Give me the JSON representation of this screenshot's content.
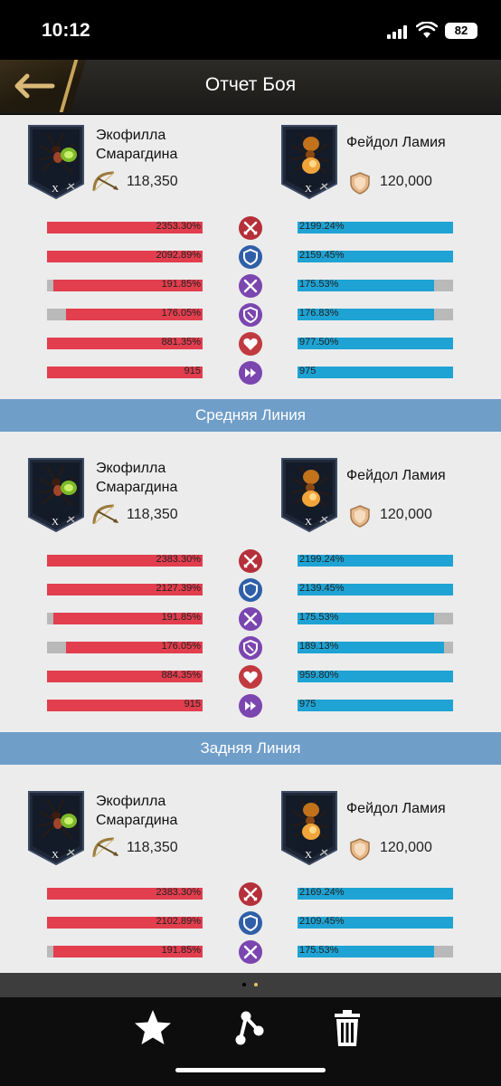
{
  "status_bar": {
    "time": "10:12",
    "battery": "82"
  },
  "header": {
    "title": "Отчет Боя"
  },
  "colors": {
    "attacker": "#e23e4e",
    "defender": "#1ea3d4",
    "divider": "#6f9ec9"
  },
  "stat_icons": [
    "attack-icon",
    "defense-icon",
    "crit-icon",
    "crit-defense-icon",
    "health-icon",
    "speed-icon"
  ],
  "sections": [
    {
      "label": "",
      "left": {
        "name_line1": "Экофилла",
        "name_line2": "Смарагдина",
        "power": "118,350",
        "rank": "X"
      },
      "right": {
        "name": "Фейдол Ламия",
        "power": "120,000",
        "rank": "X"
      },
      "stats": [
        {
          "left": "2353.30%",
          "left_fill": 1.0,
          "right": "2199.24%",
          "right_fill": 1.0
        },
        {
          "left": "2092.89%",
          "left_fill": 1.0,
          "right": "2159.45%",
          "right_fill": 1.0
        },
        {
          "left": "191.85%",
          "left_fill": 0.96,
          "right": "175.53%",
          "right_fill": 0.88
        },
        {
          "left": "176.05%",
          "left_fill": 0.88,
          "right": "176.83%",
          "right_fill": 0.88
        },
        {
          "left": "881.35%",
          "left_fill": 1.0,
          "right": "977.50%",
          "right_fill": 1.0
        },
        {
          "left": "915",
          "left_fill": 1.0,
          "right": "975",
          "right_fill": 1.0
        }
      ]
    },
    {
      "label": "Средняя Линия",
      "left": {
        "name_line1": "Экофилла",
        "name_line2": "Смарагдина",
        "power": "118,350",
        "rank": "X"
      },
      "right": {
        "name": "Фейдол Ламия",
        "power": "120,000",
        "rank": "X"
      },
      "stats": [
        {
          "left": "2383.30%",
          "left_fill": 1.0,
          "right": "2199.24%",
          "right_fill": 1.0
        },
        {
          "left": "2127.39%",
          "left_fill": 1.0,
          "right": "2139.45%",
          "right_fill": 1.0
        },
        {
          "left": "191.85%",
          "left_fill": 0.96,
          "right": "175.53%",
          "right_fill": 0.88
        },
        {
          "left": "176.05%",
          "left_fill": 0.88,
          "right": "189.13%",
          "right_fill": 0.94
        },
        {
          "left": "884.35%",
          "left_fill": 1.0,
          "right": "959.80%",
          "right_fill": 1.0
        },
        {
          "left": "915",
          "left_fill": 1.0,
          "right": "975",
          "right_fill": 1.0
        }
      ]
    },
    {
      "label": "Задняя Линия",
      "left": {
        "name_line1": "Экофилла",
        "name_line2": "Смарагдина",
        "power": "118,350",
        "rank": "X"
      },
      "right": {
        "name": "Фейдол Ламия",
        "power": "120,000",
        "rank": "X"
      },
      "stats": [
        {
          "left": "2383.30%",
          "left_fill": 1.0,
          "right": "2169.24%",
          "right_fill": 1.0
        },
        {
          "left": "2102.89%",
          "left_fill": 1.0,
          "right": "2109.45%",
          "right_fill": 1.0
        },
        {
          "left": "191.85%",
          "left_fill": 0.96,
          "right": "175.53%",
          "right_fill": 0.88
        }
      ]
    }
  ],
  "toolbar": {
    "items": [
      "favorite-star",
      "share",
      "delete-trash"
    ]
  },
  "pager": {
    "pages": 2,
    "active": 2
  }
}
